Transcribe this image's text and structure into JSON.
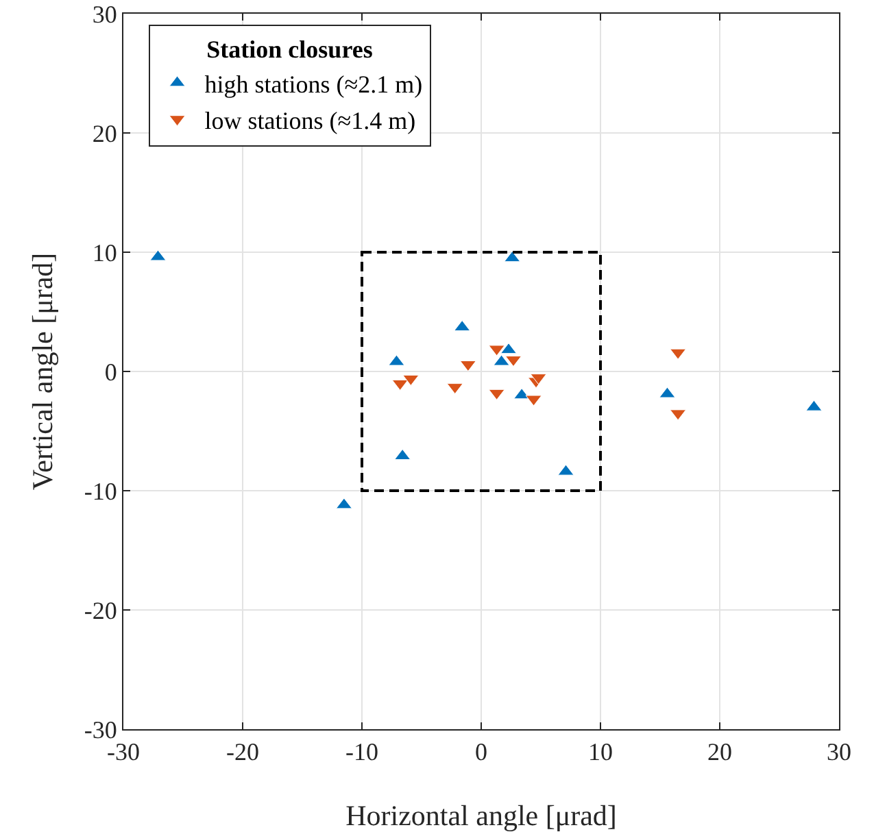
{
  "chart_data": {
    "type": "scatter",
    "xlabel": "Horizontal angle [μrad]",
    "ylabel": "Vertical angle [μrad]",
    "legend_title": "Station closures",
    "xlim": [
      -30,
      30
    ],
    "xticks": [
      -30,
      -20,
      -10,
      0,
      10,
      20,
      30
    ],
    "ylim": [
      -30,
      30
    ],
    "yticks": [
      -30,
      -20,
      -10,
      0,
      10,
      20,
      30
    ],
    "grid": true,
    "legend": "top left",
    "series": [
      {
        "name": "high stations (≈2.1 m)",
        "color": "#0072bd",
        "marker": "triangle",
        "x": [
          -27.1,
          -11.5,
          -7.1,
          -6.6,
          -1.6,
          1.7,
          2.3,
          2.6,
          3.4,
          7.1,
          15.6,
          27.9
        ],
        "values": [
          9.6,
          -11.2,
          0.8,
          -7.1,
          3.7,
          0.8,
          1.8,
          9.5,
          -2.0,
          -8.4,
          -1.9,
          -3.0
        ]
      },
      {
        "name": "low stations (≈1.4 m)",
        "color": "#d95319",
        "marker": "triangle-down",
        "x": [
          -6.8,
          -5.9,
          -2.2,
          -1.1,
          1.3,
          1.3,
          2.7,
          4.4,
          4.6,
          4.8,
          16.5,
          16.5
        ],
        "values": [
          -1.0,
          -0.6,
          -1.3,
          0.6,
          1.9,
          -1.8,
          1.0,
          -2.3,
          -0.8,
          -0.5,
          1.6,
          -3.5
        ]
      },
      {
        "type": "line",
        "color": "#000000",
        "line_style": "dashed",
        "marker": "none",
        "x": [
          -10,
          10,
          10,
          -10
        ],
        "values": [
          10,
          10,
          -10,
          -10
        ]
      }
    ]
  }
}
